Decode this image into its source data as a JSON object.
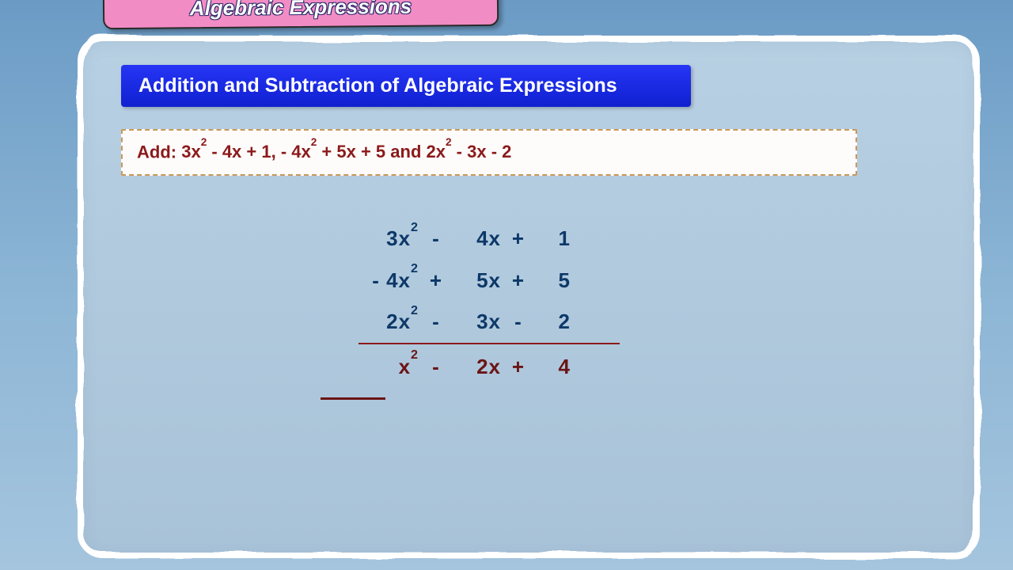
{
  "header": {
    "title": "Algebraic Expressions",
    "bg_color": "#f28cc5",
    "text_color": "#ffffff"
  },
  "subheader": {
    "text": "Addition and Subtraction of Algebraic Expressions",
    "bg_color": "#1423e0",
    "text_color": "#ffffff"
  },
  "question": {
    "prefix": "Add: ",
    "body": "3x² - 4x + 1, - 4x² + 5x + 5 and 2x² - 3x - 2",
    "text_color": "#8b1a1a",
    "bg_color": "#fefbfb",
    "border_color": "#c8985a"
  },
  "working": {
    "rows": [
      {
        "coef": "3x²",
        "op1": "-",
        "term": "4x",
        "op2": "+",
        "const": "1"
      },
      {
        "coef": "- 4x²",
        "op1": "+",
        "term": "5x",
        "op2": "+",
        "const": "5"
      },
      {
        "coef": "2x²",
        "op1": "-",
        "term": "3x",
        "op2": "-",
        "const": "2"
      }
    ],
    "result": {
      "coef": "x²",
      "op1": "-",
      "term": "2x",
      "op2": "+",
      "const": "4"
    },
    "text_color": "#0d3868",
    "rule_color": "#8b1a1a",
    "result_color": "#6a1515"
  },
  "board": {
    "bg_top": "#b8d0e3",
    "bg_bottom": "#a8c2d8",
    "border_color": "#ffffff",
    "page_bg": "#6b9bc5"
  },
  "typography": {
    "font_family": "Comic Sans MS",
    "header_fontsize": 26,
    "subheader_fontsize": 25,
    "question_fontsize": 22,
    "math_fontsize": 26
  }
}
